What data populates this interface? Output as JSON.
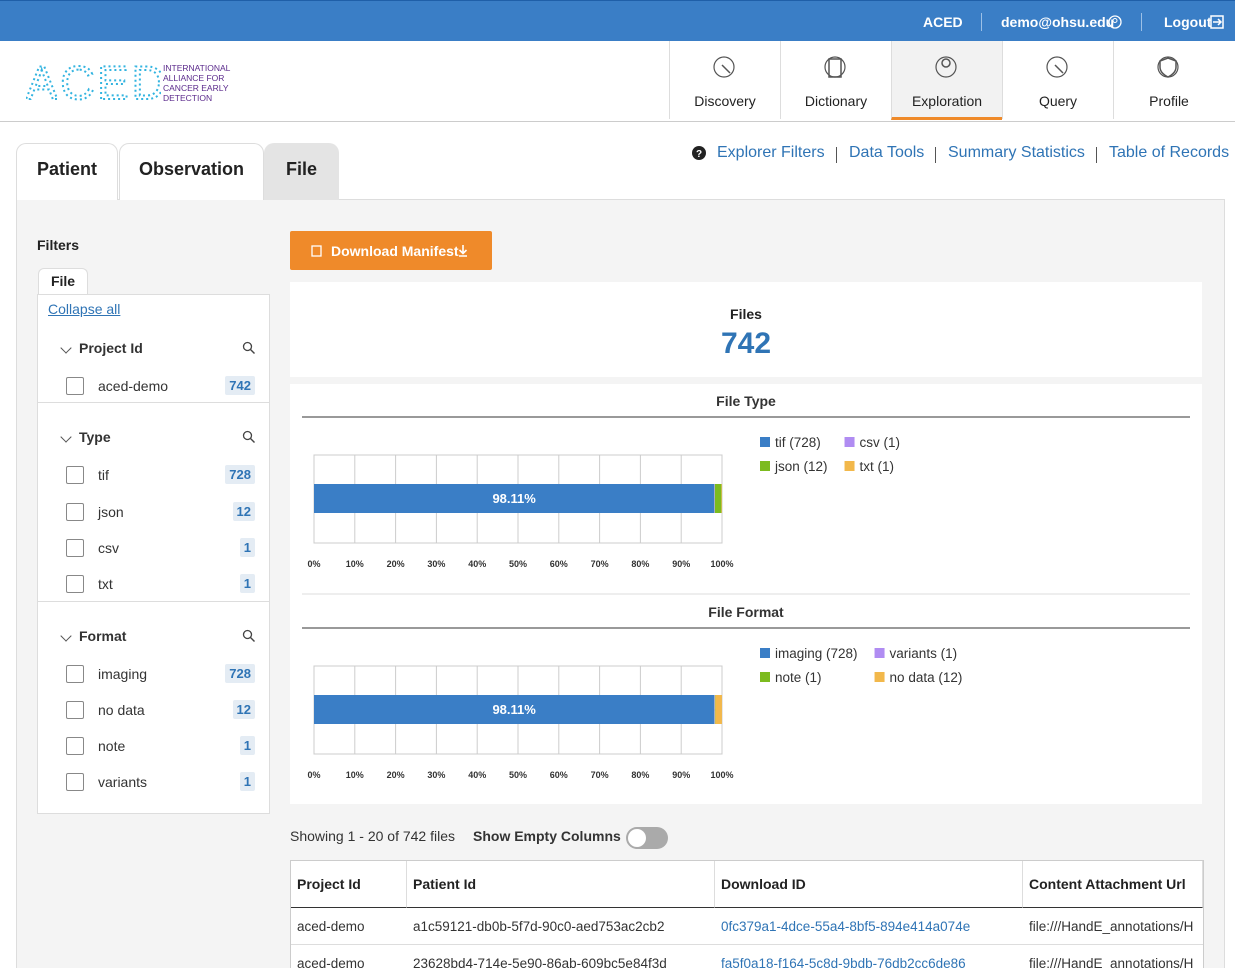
{
  "topbar": {
    "brand": "ACED",
    "user": "demo@ohsu.edu",
    "logout": "Logout"
  },
  "header": {
    "logo": "ACED",
    "logo_sub": "INTERNATIONAL ALLIANCE FOR CANCER EARLY DETECTION",
    "nav": [
      "Discovery",
      "Dictionary",
      "Exploration",
      "Query",
      "Profile"
    ],
    "active_nav": 2
  },
  "tabs": [
    "Patient",
    "Observation",
    "File"
  ],
  "active_tab": 2,
  "links": [
    "Explorer Filters",
    "Data Tools",
    "Summary Statistics",
    "Table of Records"
  ],
  "filters": {
    "title": "Filters",
    "tab": "File",
    "collapse": "Collapse all",
    "sections": [
      {
        "name": "Project Id",
        "items": [
          {
            "label": "aced-demo",
            "count": 742
          }
        ]
      },
      {
        "name": "Type",
        "items": [
          {
            "label": "tif",
            "count": 728
          },
          {
            "label": "json",
            "count": 12
          },
          {
            "label": "csv",
            "count": 1
          },
          {
            "label": "txt",
            "count": 1
          }
        ]
      },
      {
        "name": "Format",
        "items": [
          {
            "label": "imaging",
            "count": 728
          },
          {
            "label": "no data",
            "count": 12
          },
          {
            "label": "note",
            "count": 1
          },
          {
            "label": "variants",
            "count": 1
          }
        ]
      }
    ]
  },
  "download_button": "Download Manifest",
  "summary": {
    "label": "Files",
    "value": 742
  },
  "chart_data": [
    {
      "type": "stacked-bar",
      "title": "File Type",
      "xlim": [
        0,
        100
      ],
      "xticks": [
        {
          "value": 0,
          "label": "0%"
        },
        {
          "value": 10,
          "label": "10%"
        },
        {
          "value": 20,
          "label": "20%"
        },
        {
          "value": 30,
          "label": "30%"
        },
        {
          "value": 40,
          "label": "40%"
        },
        {
          "value": 50,
          "label": "50%"
        },
        {
          "value": 60,
          "label": "60%"
        },
        {
          "value": 70,
          "label": "70%"
        },
        {
          "value": 80,
          "label": "80%"
        },
        {
          "value": 90,
          "label": "90%"
        },
        {
          "value": 100,
          "label": "100%"
        }
      ],
      "grid": true,
      "series": [
        {
          "name": "tif (728)",
          "color": "#3a7ec6",
          "values": [
            98.11
          ],
          "value_labels": [
            "98.11%"
          ]
        },
        {
          "name": "csv (1)",
          "color": "#b08cf2",
          "values": [
            0.13
          ]
        },
        {
          "name": "json (12)",
          "color": "#7cbb1f",
          "values": [
            1.62
          ]
        },
        {
          "name": "txt (1)",
          "color": "#f2b84b",
          "values": [
            0.13
          ]
        }
      ]
    },
    {
      "type": "stacked-bar",
      "title": "File Format",
      "xlim": [
        0,
        100
      ],
      "xticks": [
        {
          "value": 0,
          "label": "0%"
        },
        {
          "value": 10,
          "label": "10%"
        },
        {
          "value": 20,
          "label": "20%"
        },
        {
          "value": 30,
          "label": "30%"
        },
        {
          "value": 40,
          "label": "40%"
        },
        {
          "value": 50,
          "label": "50%"
        },
        {
          "value": 60,
          "label": "60%"
        },
        {
          "value": 70,
          "label": "70%"
        },
        {
          "value": 80,
          "label": "80%"
        },
        {
          "value": 90,
          "label": "90%"
        },
        {
          "value": 100,
          "label": "100%"
        }
      ],
      "grid": true,
      "series": [
        {
          "name": "imaging (728)",
          "color": "#3a7ec6",
          "values": [
            98.11
          ],
          "value_labels": [
            "98.11%"
          ]
        },
        {
          "name": "variants (1)",
          "color": "#b08cf2",
          "values": [
            0.13
          ]
        },
        {
          "name": "note (1)",
          "color": "#7cbb1f",
          "values": [
            0.13
          ]
        },
        {
          "name": "no data (12)",
          "color": "#f2b84b",
          "values": [
            1.62
          ]
        }
      ]
    }
  ],
  "table_status": "Showing 1 - 20 of 742 files",
  "empty_columns_toggle": "Show Empty Columns",
  "table": {
    "headers": [
      "Project Id",
      "Patient Id",
      "Download ID",
      "Content Attachment Url"
    ],
    "rows": [
      [
        "aced-demo",
        "a1c59121-db0b-5f7d-90c0-aed753ac2cb2",
        "0fc379a1-4dce-55a4-8bf5-894e414a074e",
        "file:///HandE_annotations/H"
      ],
      [
        "aced-demo",
        "23628bd4-714e-5e90-86ab-609bc5e84f3d",
        "fa5f0a18-f164-5c8d-9bdb-76db2cc6de86",
        "file:///HandE_annotations/H"
      ]
    ]
  }
}
